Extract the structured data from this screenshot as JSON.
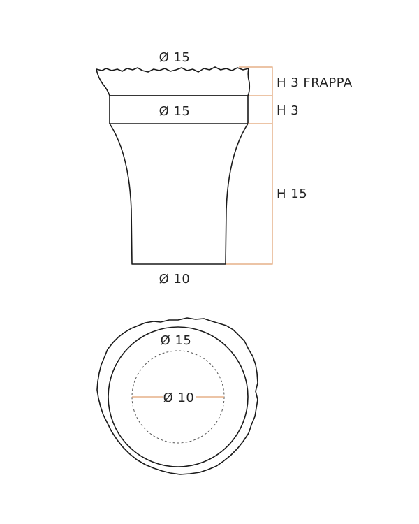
{
  "side_view": {
    "top_diameter": "Ø 15",
    "band_diameter": "Ø 15",
    "bottom_diameter": "Ø 10",
    "frappa_height": "H 3 FRAPPA",
    "band_height": "H 3",
    "body_height": "H 15"
  },
  "top_view": {
    "outer_diameter": "Ø 15",
    "inner_diameter": "Ø 10"
  },
  "colors": {
    "outline": "#1a1a1a",
    "dimension": "#e0a070",
    "text": "#222222"
  }
}
